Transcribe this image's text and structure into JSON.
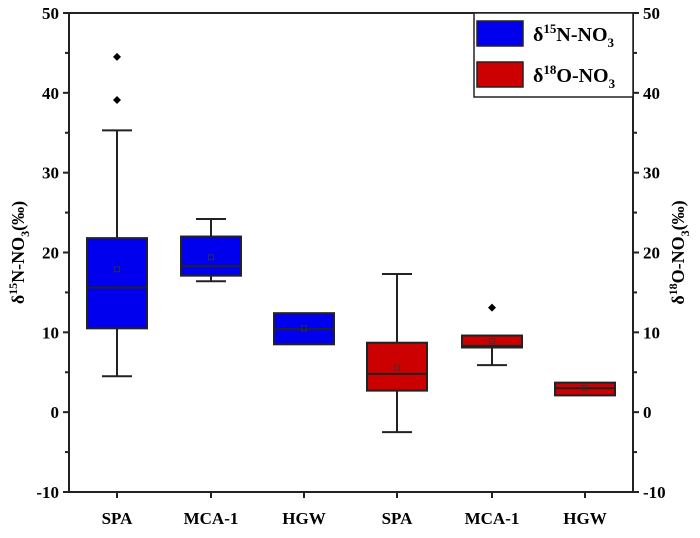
{
  "chart_data": {
    "type": "box",
    "ylim": [
      -10,
      50
    ],
    "yticks": [
      -10,
      0,
      10,
      20,
      30,
      40,
      50
    ],
    "ylabel_left": {
      "base": "δ",
      "sup": "15",
      "mid": "N-NO",
      "sub": "3",
      "tail": "(‰)"
    },
    "ylabel_right": {
      "base": "δ",
      "sup": "18",
      "mid": "O-NO",
      "sub": "3",
      "tail": "(‰)"
    },
    "categories": [
      "SPA",
      "MCA-1",
      "HGW",
      "SPA",
      "MCA-1",
      "HGW"
    ],
    "legend": {
      "placement": "top-right",
      "entries": [
        {
          "base": "δ",
          "sup": "15",
          "mid": "N-NO",
          "sub": "3",
          "color": "#0000ee"
        },
        {
          "base": "δ",
          "sup": "18",
          "mid": "O-NO",
          "sub": "3",
          "color": "#cc0000"
        }
      ]
    },
    "boxes": [
      {
        "category": "SPA",
        "series": 0,
        "low": 4.5,
        "q1": 10.5,
        "median": 15.6,
        "q3": 21.8,
        "high": 35.3,
        "mean": 17.9,
        "outliers": [
          39.1,
          44.5
        ]
      },
      {
        "category": "MCA-1",
        "series": 0,
        "low": 16.4,
        "q1": 17.1,
        "median": 18.3,
        "q3": 22.0,
        "high": 24.2,
        "mean": 19.4,
        "outliers": []
      },
      {
        "category": "HGW",
        "series": 0,
        "low": 8.5,
        "q1": 8.5,
        "median": 10.4,
        "q3": 12.4,
        "high": 12.4,
        "mean": 10.5,
        "outliers": []
      },
      {
        "category": "SPA",
        "series": 1,
        "low": -2.5,
        "q1": 2.7,
        "median": 4.8,
        "q3": 8.7,
        "high": 17.3,
        "mean": 5.6,
        "outliers": []
      },
      {
        "category": "MCA-1",
        "series": 1,
        "low": 5.9,
        "q1": 8.1,
        "median": 8.3,
        "q3": 9.6,
        "high": 9.6,
        "mean": 8.9,
        "outliers": [
          13.1
        ]
      },
      {
        "category": "HGW",
        "series": 1,
        "low": 2.1,
        "q1": 2.1,
        "median": 3.0,
        "q3": 3.7,
        "high": 3.7,
        "mean": 3.0,
        "outliers": []
      }
    ]
  }
}
